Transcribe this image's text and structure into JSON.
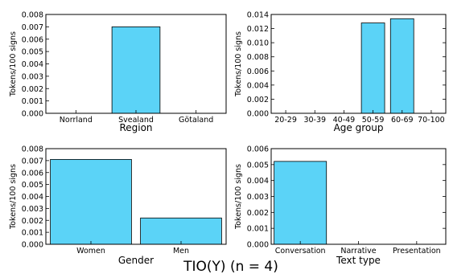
{
  "title": "TIO(Y) (n = 4)",
  "bar_color": "#5bd3f7",
  "chart_data": [
    {
      "type": "bar",
      "xlabel": "Region",
      "ylabel": "Tokens/100 signs",
      "categories": [
        "Norrland",
        "Svealand",
        "Götaland"
      ],
      "values": [
        0,
        0.007,
        0
      ],
      "ylim": [
        0,
        0.008
      ],
      "yticks": [
        "0.000",
        "0.001",
        "0.002",
        "0.003",
        "0.004",
        "0.005",
        "0.006",
        "0.007",
        "0.008"
      ]
    },
    {
      "type": "bar",
      "xlabel": "Age group",
      "ylabel": "Tokens/100 signs",
      "categories": [
        "20-29",
        "30-39",
        "40-49",
        "50-59",
        "60-69",
        "70-100"
      ],
      "values": [
        0,
        0,
        0,
        0.0128,
        0.0134,
        0
      ],
      "ylim": [
        0,
        0.014
      ],
      "yticks": [
        "0.000",
        "0.002",
        "0.004",
        "0.006",
        "0.008",
        "0.010",
        "0.012",
        "0.014"
      ]
    },
    {
      "type": "bar",
      "xlabel": "Gender",
      "ylabel": "Tokens/100 signs",
      "categories": [
        "Women",
        "Men"
      ],
      "values": [
        0.0071,
        0.0022
      ],
      "ylim": [
        0,
        0.008
      ],
      "yticks": [
        "0.000",
        "0.001",
        "0.002",
        "0.003",
        "0.004",
        "0.005",
        "0.006",
        "0.007",
        "0.008"
      ]
    },
    {
      "type": "bar",
      "xlabel": "Text type",
      "ylabel": "Tokens/100 signs",
      "categories": [
        "Conversation",
        "Narrative",
        "Presentation"
      ],
      "values": [
        0.0052,
        0,
        0
      ],
      "ylim": [
        0,
        0.006
      ],
      "yticks": [
        "0.000",
        "0.001",
        "0.002",
        "0.003",
        "0.004",
        "0.005",
        "0.006"
      ]
    }
  ]
}
